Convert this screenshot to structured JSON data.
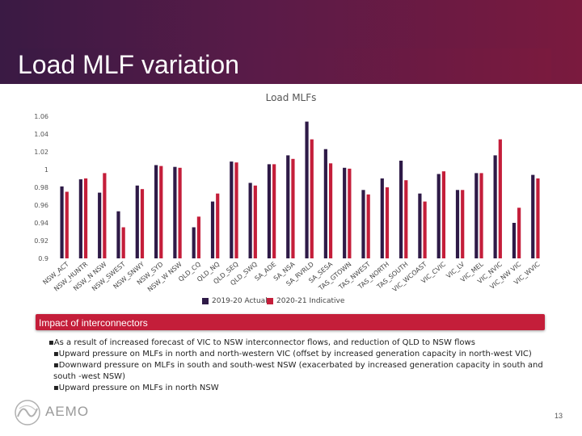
{
  "header": {
    "title": "Load MLF variation"
  },
  "chart_data": {
    "type": "bar",
    "title": "Load MLFs",
    "ylim": [
      0.9,
      1.06
    ],
    "yticks": [
      "0.9",
      "0.92",
      "0.94",
      "0.96",
      "0.98",
      "1",
      "1.02",
      "1.04",
      "1.06"
    ],
    "categories": [
      "NSW_ACT",
      "NSW_HUNTR",
      "NSW_N NSW",
      "NSW_SWEST",
      "NSW_SNWY",
      "NSW_SYD",
      "NSW_W NSW",
      "QLD_CQ",
      "QLD_NQ",
      "QLD_SEQ",
      "QLD_SWQ",
      "SA_ADE",
      "SA_NSA",
      "SA_RVRLD",
      "SA_SESA",
      "TAS_GTOWN",
      "TAS_NWEST",
      "TAS_NORTH",
      "TAS_SOUTH",
      "VIC_WCOAST",
      "VIC_CVIC",
      "VIC_LV",
      "VIC_MEL",
      "VIC_NVIC",
      "VIC_NW VIC",
      "VIC_WVIC"
    ],
    "series": [
      {
        "name": "2019-20 Actual",
        "color": "#2e1a47",
        "values": [
          0.981,
          0.989,
          0.974,
          0.953,
          0.982,
          1.005,
          1.003,
          0.935,
          0.964,
          1.009,
          0.985,
          1.006,
          1.016,
          1.054,
          1.023,
          1.002,
          0.977,
          0.99,
          1.01,
          0.973,
          0.995,
          0.977,
          0.996,
          1.016,
          0.94,
          0.994
        ]
      },
      {
        "name": "2020-21 Indicative",
        "color": "#c41e3a",
        "values": [
          0.975,
          0.99,
          0.996,
          0.935,
          0.978,
          1.004,
          1.002,
          0.947,
          0.973,
          1.008,
          0.982,
          1.006,
          1.012,
          1.034,
          1.007,
          1.001,
          0.972,
          0.98,
          0.988,
          0.964,
          0.998,
          0.977,
          0.996,
          1.034,
          0.957,
          0.99
        ]
      }
    ],
    "grid": false,
    "legend_position": "bottom"
  },
  "banner": {
    "text": "Impact of interconnectors"
  },
  "bullets": [
    "▪As a result of increased forecast of VIC to NSW interconnector flows, and reduction of QLD to NSW flows",
    "▪Upward pressure on MLFs in north and north-western VIC (offset by increased generation capacity in north-west VIC)",
    "▪Downward pressure on MLFs in south and south-west NSW (exacerbated by increased generation capacity in south and south -west NSW)",
    "▪Upward pressure on MLFs in north NSW"
  ],
  "logo": {
    "text": "AEMO",
    "icon": "aemo-logo-icon"
  },
  "page": {
    "number": "13"
  },
  "colors": {
    "header": "#4a1a46",
    "accent": "#c41e3a",
    "series1": "#2e1a47",
    "series2": "#c41e3a"
  }
}
